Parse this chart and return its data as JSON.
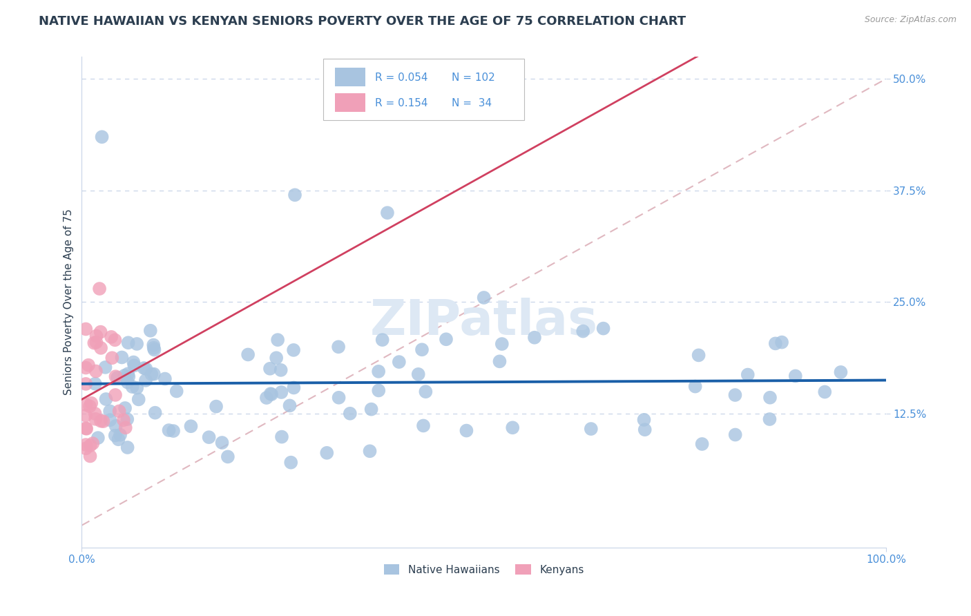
{
  "title": "NATIVE HAWAIIAN VS KENYAN SENIORS POVERTY OVER THE AGE OF 75 CORRELATION CHART",
  "source": "Source: ZipAtlas.com",
  "ylabel": "Seniors Poverty Over the Age of 75",
  "xlim": [
    0,
    1
  ],
  "ylim": [
    -0.025,
    0.525
  ],
  "xticks": [
    0.0,
    1.0
  ],
  "xticklabels": [
    "0.0%",
    "100.0%"
  ],
  "yticks": [
    0.125,
    0.25,
    0.375,
    0.5
  ],
  "yticklabels": [
    "12.5%",
    "25.0%",
    "37.5%",
    "50.0%"
  ],
  "title_fontsize": 13,
  "axis_fontsize": 11,
  "tick_fontsize": 11,
  "legend_R1_val": "0.054",
  "legend_N1_val": "102",
  "legend_R2_val": "0.154",
  "legend_N2_val": "34",
  "hawaiian_color": "#a8c4e0",
  "kenyan_color": "#f0a0b8",
  "hawaiian_line_color": "#1a5fa8",
  "kenyan_line_color": "#d04060",
  "ref_line_color": "#e0b8c0",
  "grid_color": "#c8d4e8",
  "bg_color": "#ffffff",
  "title_color": "#2c3e50",
  "tick_color": "#4a90d9",
  "source_color": "#999999",
  "watermark_color": "#dde8f4",
  "nh_seed": 123,
  "ken_seed": 77
}
